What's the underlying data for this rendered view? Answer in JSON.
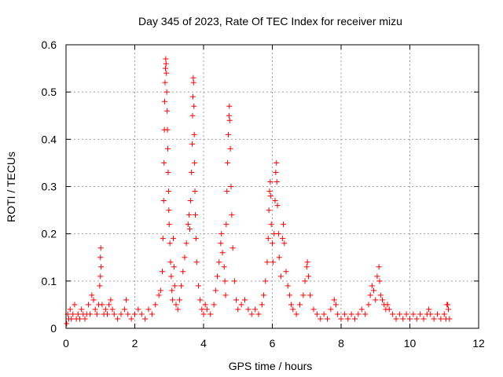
{
  "chart_data": {
    "type": "scatter",
    "title": "Day 345 of 2023, Rate Of TEC Index for receiver mizu",
    "xlabel": "GPS time / hours",
    "ylabel": "ROTI / TECUs",
    "xlim": [
      0,
      12
    ],
    "ylim": [
      0,
      0.6
    ],
    "xticks": [
      "0",
      "2",
      "4",
      "6",
      "8",
      "10",
      "12"
    ],
    "yticks": [
      "0",
      "0.1",
      "0.2",
      "0.3",
      "0.4",
      "0.5",
      "0.6"
    ],
    "grid": true,
    "marker": "+",
    "color": "#ff0000",
    "series": [
      {
        "points": [
          [
            0.02,
            0.01
          ],
          [
            0.05,
            0.03
          ],
          [
            0.08,
            0.02
          ],
          [
            0.12,
            0.04
          ],
          [
            0.15,
            0.02
          ],
          [
            0.2,
            0.03
          ],
          [
            0.25,
            0.05
          ],
          [
            0.3,
            0.02
          ],
          [
            0.35,
            0.03
          ],
          [
            0.4,
            0.02
          ],
          [
            0.45,
            0.04
          ],
          [
            0.5,
            0.03
          ],
          [
            0.55,
            0.02
          ],
          [
            0.6,
            0.03
          ],
          [
            0.65,
            0.05
          ],
          [
            0.7,
            0.03
          ],
          [
            0.75,
            0.07
          ],
          [
            0.8,
            0.06
          ],
          [
            0.85,
            0.04
          ],
          [
            0.9,
            0.03
          ],
          [
            0.95,
            0.05
          ],
          [
            0.98,
            0.09
          ],
          [
            1.0,
            0.11
          ],
          [
            1.0,
            0.15
          ],
          [
            1.01,
            0.17
          ],
          [
            1.02,
            0.13
          ],
          [
            1.05,
            0.05
          ],
          [
            1.1,
            0.03
          ],
          [
            1.15,
            0.04
          ],
          [
            1.2,
            0.03
          ],
          [
            1.25,
            0.05
          ],
          [
            1.3,
            0.06
          ],
          [
            1.35,
            0.04
          ],
          [
            1.4,
            0.03
          ],
          [
            1.5,
            0.02
          ],
          [
            1.6,
            0.03
          ],
          [
            1.7,
            0.04
          ],
          [
            1.75,
            0.06
          ],
          [
            1.8,
            0.03
          ],
          [
            1.9,
            0.02
          ],
          [
            2.0,
            0.03
          ],
          [
            2.1,
            0.04
          ],
          [
            2.2,
            0.03
          ],
          [
            2.3,
            0.02
          ],
          [
            2.4,
            0.04
          ],
          [
            2.5,
            0.03
          ],
          [
            2.6,
            0.05
          ],
          [
            2.7,
            0.07
          ],
          [
            2.75,
            0.08
          ],
          [
            2.8,
            0.12
          ],
          [
            2.82,
            0.19
          ],
          [
            2.84,
            0.27
          ],
          [
            2.85,
            0.35
          ],
          [
            2.86,
            0.42
          ],
          [
            2.87,
            0.48
          ],
          [
            2.88,
            0.52
          ],
          [
            2.89,
            0.55
          ],
          [
            2.9,
            0.57
          ],
          [
            2.91,
            0.56
          ],
          [
            2.92,
            0.54
          ],
          [
            2.93,
            0.5
          ],
          [
            2.94,
            0.46
          ],
          [
            2.95,
            0.42
          ],
          [
            2.96,
            0.38
          ],
          [
            2.97,
            0.33
          ],
          [
            2.98,
            0.29
          ],
          [
            2.99,
            0.25
          ],
          [
            3.0,
            0.22
          ],
          [
            3.02,
            0.18
          ],
          [
            3.04,
            0.14
          ],
          [
            3.06,
            0.11
          ],
          [
            3.08,
            0.08
          ],
          [
            3.1,
            0.06
          ],
          [
            3.12,
            0.19
          ],
          [
            3.14,
            0.13
          ],
          [
            3.16,
            0.09
          ],
          [
            3.2,
            0.05
          ],
          [
            3.25,
            0.04
          ],
          [
            3.3,
            0.06
          ],
          [
            3.35,
            0.09
          ],
          [
            3.4,
            0.12
          ],
          [
            3.45,
            0.15
          ],
          [
            3.5,
            0.18
          ],
          [
            3.55,
            0.22
          ],
          [
            3.58,
            0.24
          ],
          [
            3.6,
            0.21
          ],
          [
            3.62,
            0.27
          ],
          [
            3.65,
            0.33
          ],
          [
            3.67,
            0.39
          ],
          [
            3.68,
            0.45
          ],
          [
            3.69,
            0.49
          ],
          [
            3.7,
            0.53
          ],
          [
            3.71,
            0.52
          ],
          [
            3.72,
            0.47
          ],
          [
            3.73,
            0.41
          ],
          [
            3.74,
            0.35
          ],
          [
            3.75,
            0.29
          ],
          [
            3.76,
            0.24
          ],
          [
            3.78,
            0.19
          ],
          [
            3.8,
            0.14
          ],
          [
            3.85,
            0.09
          ],
          [
            3.9,
            0.06
          ],
          [
            3.95,
            0.04
          ],
          [
            4.0,
            0.03
          ],
          [
            4.05,
            0.05
          ],
          [
            4.1,
            0.04
          ],
          [
            4.2,
            0.03
          ],
          [
            4.3,
            0.05
          ],
          [
            4.35,
            0.08
          ],
          [
            4.4,
            0.11
          ],
          [
            4.45,
            0.14
          ],
          [
            4.5,
            0.18
          ],
          [
            4.52,
            0.2
          ],
          [
            4.55,
            0.16
          ],
          [
            4.6,
            0.13
          ],
          [
            4.62,
            0.1
          ],
          [
            4.64,
            0.07
          ],
          [
            4.66,
            0.22
          ],
          [
            4.68,
            0.29
          ],
          [
            4.7,
            0.35
          ],
          [
            4.72,
            0.41
          ],
          [
            4.74,
            0.45
          ],
          [
            4.75,
            0.47
          ],
          [
            4.76,
            0.44
          ],
          [
            4.78,
            0.38
          ],
          [
            4.8,
            0.3
          ],
          [
            4.82,
            0.24
          ],
          [
            4.85,
            0.17
          ],
          [
            4.9,
            0.1
          ],
          [
            4.95,
            0.06
          ],
          [
            5.0,
            0.04
          ],
          [
            5.1,
            0.05
          ],
          [
            5.2,
            0.06
          ],
          [
            5.3,
            0.04
          ],
          [
            5.4,
            0.03
          ],
          [
            5.5,
            0.04
          ],
          [
            5.6,
            0.03
          ],
          [
            5.7,
            0.05
          ],
          [
            5.75,
            0.07
          ],
          [
            5.8,
            0.1
          ],
          [
            5.85,
            0.14
          ],
          [
            5.88,
            0.19
          ],
          [
            5.9,
            0.25
          ],
          [
            5.92,
            0.29
          ],
          [
            5.94,
            0.31
          ],
          [
            5.95,
            0.28
          ],
          [
            5.97,
            0.22
          ],
          [
            6.0,
            0.18
          ],
          [
            6.02,
            0.14
          ],
          [
            6.05,
            0.2
          ],
          [
            6.08,
            0.27
          ],
          [
            6.1,
            0.33
          ],
          [
            6.12,
            0.35
          ],
          [
            6.13,
            0.31
          ],
          [
            6.15,
            0.26
          ],
          [
            6.18,
            0.2
          ],
          [
            6.2,
            0.15
          ],
          [
            6.25,
            0.11
          ],
          [
            6.3,
            0.19
          ],
          [
            6.32,
            0.22
          ],
          [
            6.35,
            0.18
          ],
          [
            6.4,
            0.12
          ],
          [
            6.45,
            0.09
          ],
          [
            6.5,
            0.07
          ],
          [
            6.55,
            0.05
          ],
          [
            6.6,
            0.04
          ],
          [
            6.7,
            0.03
          ],
          [
            6.8,
            0.05
          ],
          [
            6.9,
            0.07
          ],
          [
            6.95,
            0.1
          ],
          [
            7.0,
            0.13
          ],
          [
            7.02,
            0.14
          ],
          [
            7.05,
            0.11
          ],
          [
            7.1,
            0.07
          ],
          [
            7.2,
            0.04
          ],
          [
            7.3,
            0.03
          ],
          [
            7.4,
            0.02
          ],
          [
            7.5,
            0.03
          ],
          [
            7.6,
            0.02
          ],
          [
            7.7,
            0.04
          ],
          [
            7.8,
            0.06
          ],
          [
            7.85,
            0.05
          ],
          [
            7.9,
            0.03
          ],
          [
            8.0,
            0.02
          ],
          [
            8.1,
            0.03
          ],
          [
            8.2,
            0.02
          ],
          [
            8.3,
            0.03
          ],
          [
            8.4,
            0.02
          ],
          [
            8.5,
            0.03
          ],
          [
            8.6,
            0.04
          ],
          [
            8.7,
            0.03
          ],
          [
            8.8,
            0.05
          ],
          [
            8.85,
            0.07
          ],
          [
            8.9,
            0.09
          ],
          [
            8.95,
            0.08
          ],
          [
            9.0,
            0.06
          ],
          [
            9.05,
            0.11
          ],
          [
            9.1,
            0.13
          ],
          [
            9.12,
            0.1
          ],
          [
            9.15,
            0.07
          ],
          [
            9.2,
            0.06
          ],
          [
            9.25,
            0.05
          ],
          [
            9.3,
            0.04
          ],
          [
            9.35,
            0.05
          ],
          [
            9.4,
            0.04
          ],
          [
            9.5,
            0.03
          ],
          [
            9.6,
            0.02
          ],
          [
            9.7,
            0.03
          ],
          [
            9.8,
            0.02
          ],
          [
            9.9,
            0.03
          ],
          [
            10.0,
            0.02
          ],
          [
            10.1,
            0.03
          ],
          [
            10.2,
            0.02
          ],
          [
            10.3,
            0.03
          ],
          [
            10.4,
            0.02
          ],
          [
            10.5,
            0.03
          ],
          [
            10.55,
            0.04
          ],
          [
            10.6,
            0.03
          ],
          [
            10.7,
            0.02
          ],
          [
            10.8,
            0.03
          ],
          [
            10.9,
            0.02
          ],
          [
            11.0,
            0.03
          ],
          [
            11.05,
            0.02
          ],
          [
            11.08,
            0.05
          ],
          [
            11.1,
            0.05
          ],
          [
            11.12,
            0.04
          ],
          [
            11.15,
            0.02
          ]
        ]
      }
    ]
  }
}
